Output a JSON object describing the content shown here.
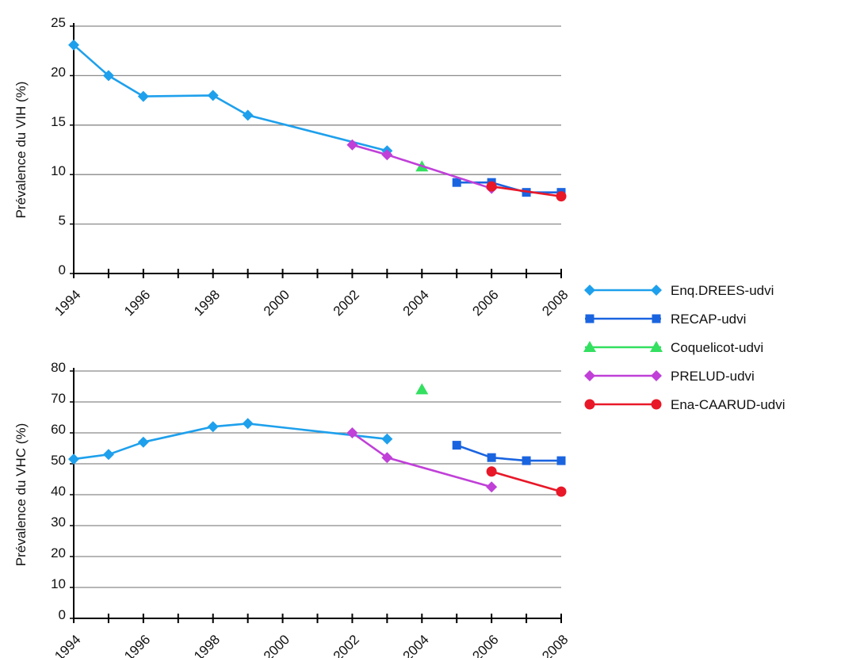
{
  "chart_data": [
    {
      "type": "line",
      "title": "",
      "ylabel": "Prévalence du VIH (%)",
      "xlabel": "",
      "ylim": [
        0,
        25
      ],
      "yticks": [
        0,
        5,
        10,
        15,
        20,
        25
      ],
      "xlim": [
        1994,
        2008
      ],
      "xticks": [
        1994,
        1996,
        1998,
        2000,
        2002,
        2004,
        2006,
        2008
      ],
      "grid": true,
      "series": [
        {
          "name": "Enq.DREES-udvi",
          "marker": "diamond",
          "color": "#1ea0ec",
          "points": [
            [
              1994,
              23.1
            ],
            [
              1995,
              20.0
            ],
            [
              1996,
              17.9
            ],
            [
              1998,
              18.0
            ],
            [
              1999,
              16.0
            ],
            [
              2003,
              12.4
            ]
          ]
        },
        {
          "name": "RECAP-udvi",
          "marker": "square",
          "color": "#1a64e0",
          "points": [
            [
              2005,
              9.2
            ],
            [
              2006,
              9.2
            ],
            [
              2007,
              8.2
            ],
            [
              2008,
              8.2
            ]
          ]
        },
        {
          "name": "Coquelicot-udvi",
          "marker": "triangle",
          "color": "#33e060",
          "points": [
            [
              2004,
              10.8
            ]
          ]
        },
        {
          "name": "PRELUD-udvi",
          "marker": "diamond",
          "color": "#c040d8",
          "points": [
            [
              2002,
              13.0
            ],
            [
              2003,
              12.0
            ],
            [
              2006,
              8.6
            ]
          ]
        },
        {
          "name": "Ena-CAARUD-udvi",
          "marker": "circle",
          "color": "#e81828",
          "points": [
            [
              2006,
              8.8
            ],
            [
              2008,
              7.8
            ]
          ]
        }
      ]
    },
    {
      "type": "line",
      "title": "",
      "ylabel": "Prévalence du VHC (%)",
      "xlabel": "",
      "ylim": [
        0,
        80
      ],
      "yticks": [
        0,
        10,
        20,
        30,
        40,
        50,
        60,
        70,
        80
      ],
      "xlim": [
        1994,
        2008
      ],
      "xticks": [
        1994,
        1996,
        1998,
        2000,
        2002,
        2004,
        2006,
        2008
      ],
      "grid": true,
      "series": [
        {
          "name": "Enq.DREES-udvi",
          "marker": "diamond",
          "color": "#1ea0ec",
          "points": [
            [
              1994,
              51.5
            ],
            [
              1995,
              53.0
            ],
            [
              1996,
              57.0
            ],
            [
              1998,
              62.0
            ],
            [
              1999,
              63.0
            ],
            [
              2003,
              58.0
            ]
          ]
        },
        {
          "name": "RECAP-udvi",
          "marker": "square",
          "color": "#1a64e0",
          "points": [
            [
              2005,
              56.0
            ],
            [
              2006,
              52.0
            ],
            [
              2007,
              51.0
            ],
            [
              2008,
              51.0
            ]
          ]
        },
        {
          "name": "Coquelicot-udvi",
          "marker": "triangle",
          "color": "#33e060",
          "points": [
            [
              2004,
              74.0
            ]
          ]
        },
        {
          "name": "PRELUD-udvi",
          "marker": "diamond",
          "color": "#c040d8",
          "points": [
            [
              2002,
              60.0
            ],
            [
              2003,
              52.0
            ],
            [
              2006,
              42.5
            ]
          ]
        },
        {
          "name": "Ena-CAARUD-udvi",
          "marker": "circle",
          "color": "#e81828",
          "points": [
            [
              2006,
              47.5
            ],
            [
              2008,
              41.0
            ]
          ]
        }
      ]
    }
  ],
  "legend": {
    "placement": "right",
    "items": [
      {
        "label": "Enq.DREES-udvi",
        "marker": "diamond",
        "color": "#1ea0ec"
      },
      {
        "label": "RECAP-udvi",
        "marker": "square",
        "color": "#1a64e0"
      },
      {
        "label": "Coquelicot-udvi",
        "marker": "triangle",
        "color": "#33e060"
      },
      {
        "label": "PRELUD-udvi",
        "marker": "diamond",
        "color": "#c040d8"
      },
      {
        "label": "Ena-CAARUD-udvi",
        "marker": "circle",
        "color": "#e81828"
      }
    ]
  }
}
